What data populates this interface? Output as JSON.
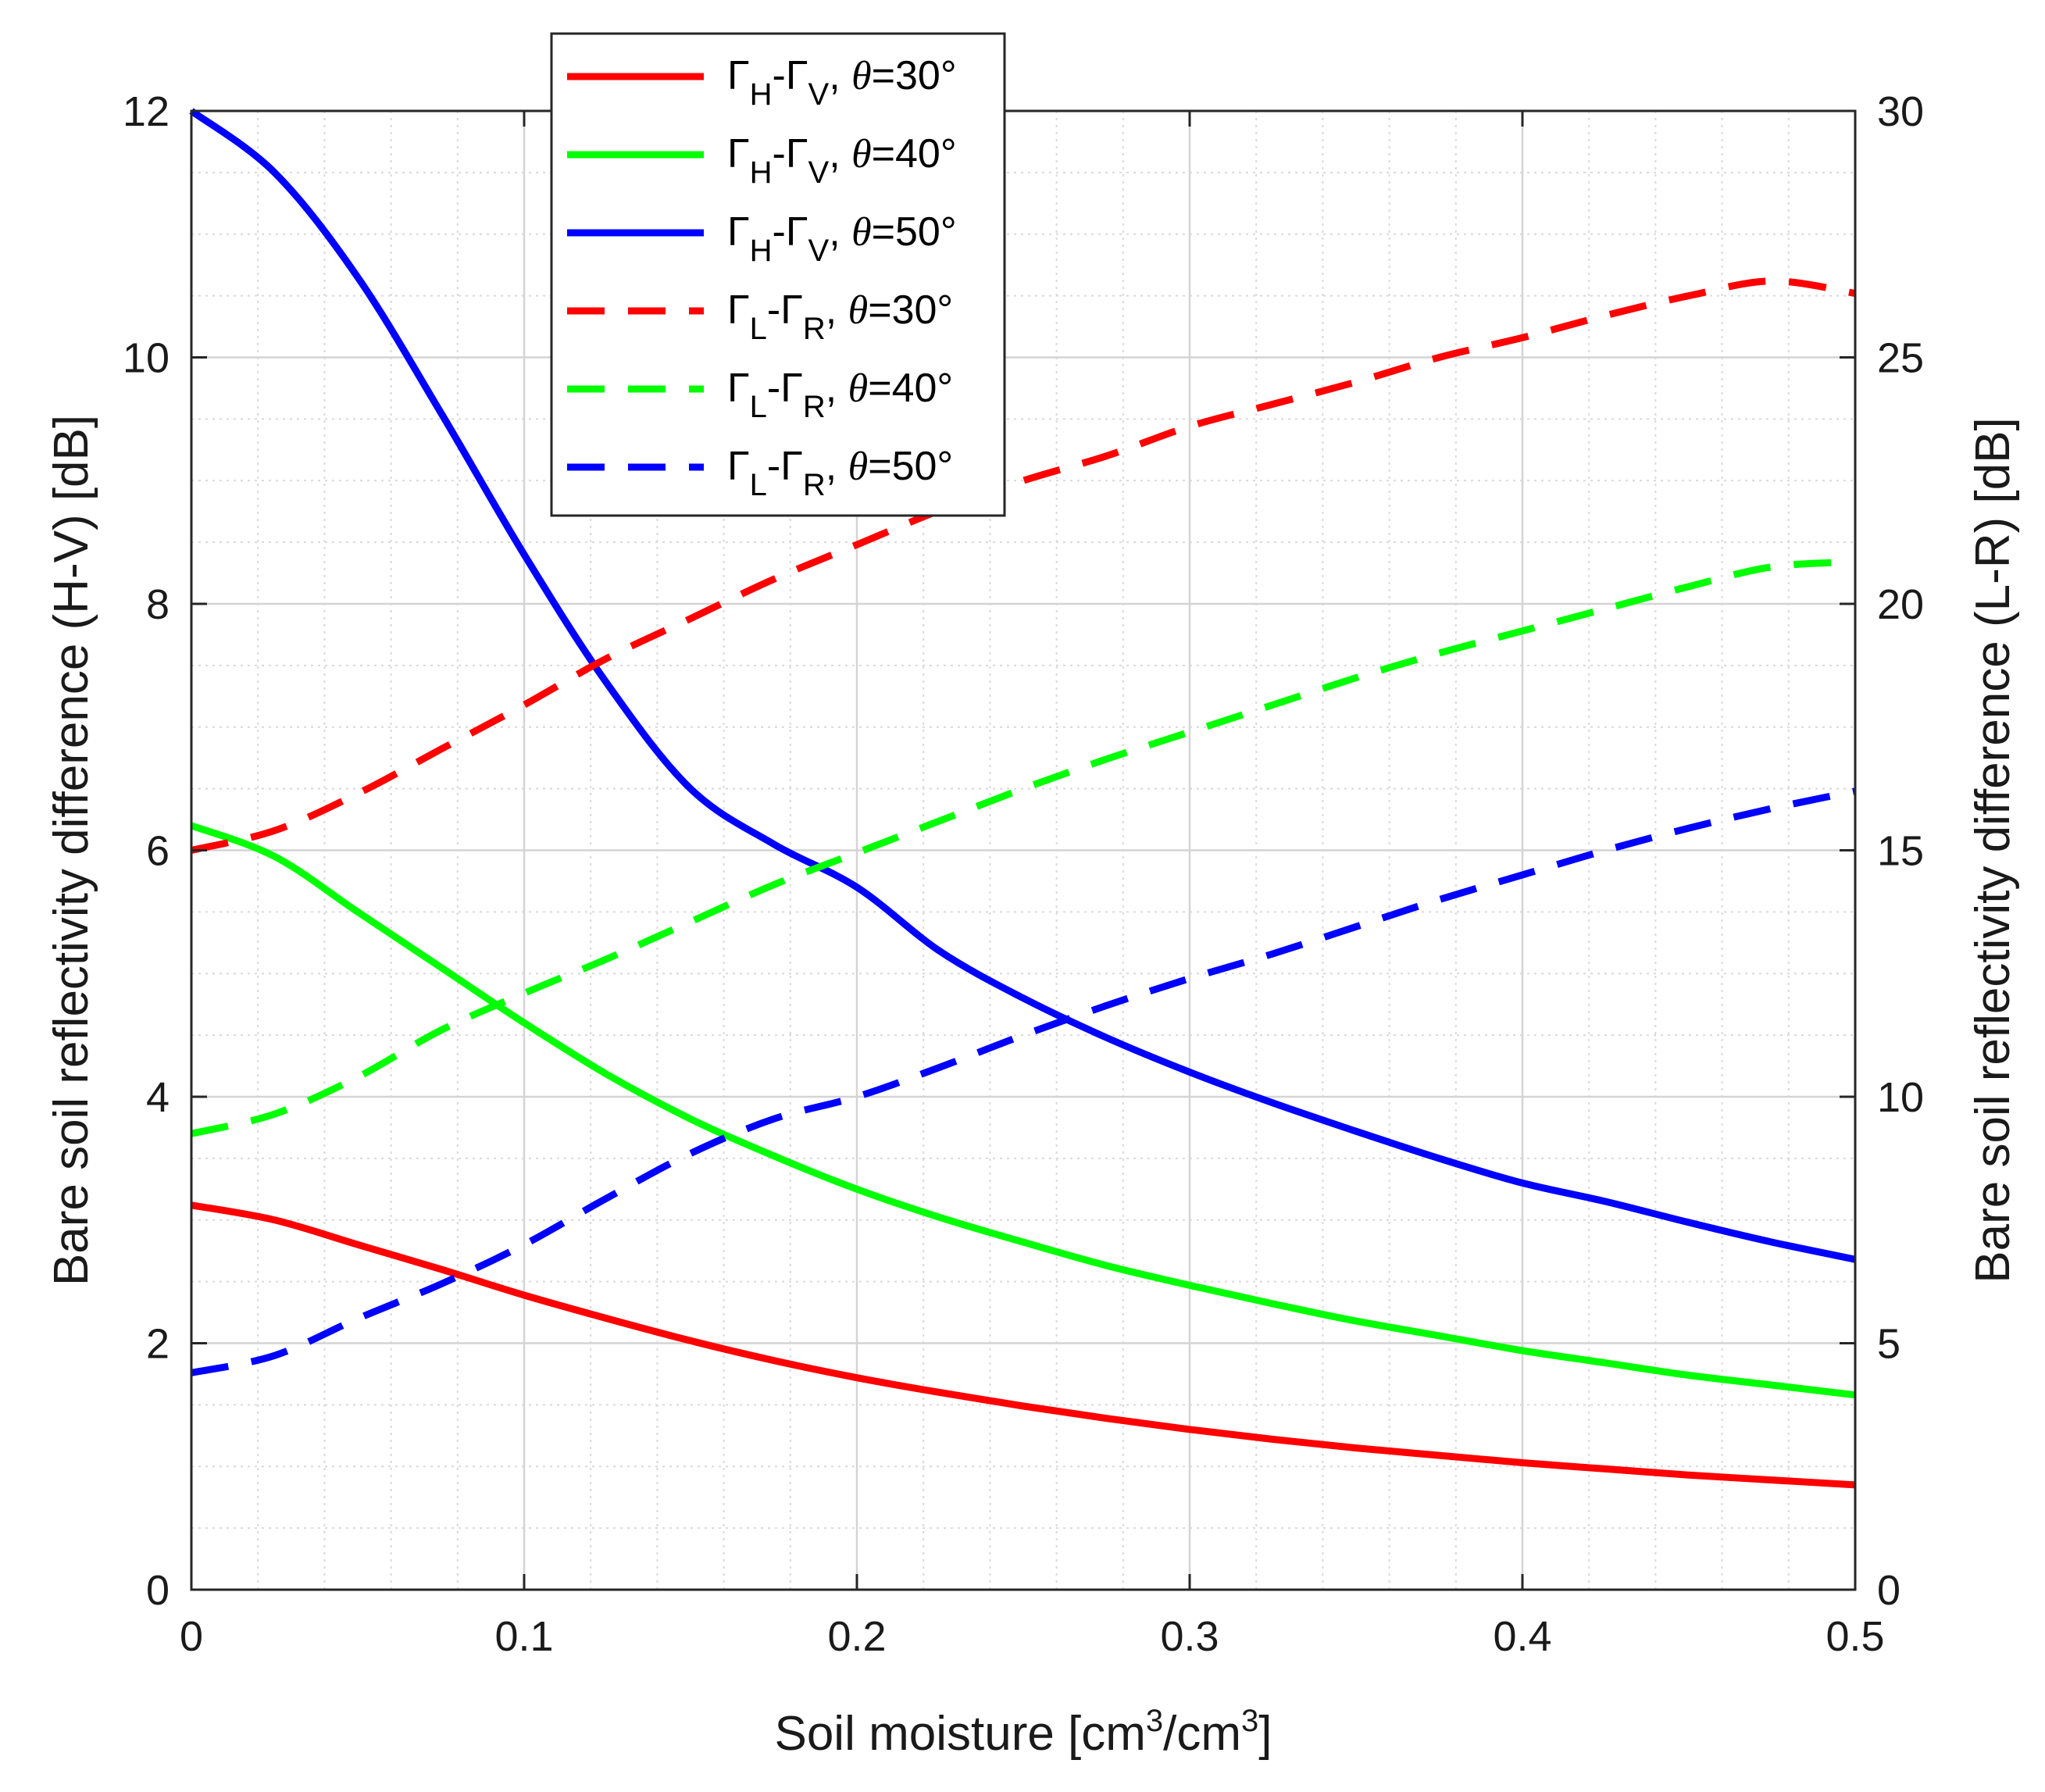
{
  "chart_data": {
    "type": "line",
    "title": "",
    "xlabel": {
      "main": "Soil moisture [cm",
      "sup1": "3",
      "mid": "/cm",
      "sup2": "3",
      "end": "]"
    },
    "ylabel_left": "Bare soil reflectivity difference (H-V) [dB]",
    "ylabel_right": "Bare soil reflectivity difference (L-R) [dB]",
    "xlim": [
      0,
      0.5
    ],
    "ylim_left": [
      0,
      12
    ],
    "ylim_right": [
      0,
      30
    ],
    "xticks": [
      0,
      0.1,
      0.2,
      0.3,
      0.4,
      0.5
    ],
    "xtick_labels": [
      "0",
      "0.1",
      "0.2",
      "0.3",
      "0.4",
      "0.5"
    ],
    "yticks_left": [
      0,
      2,
      4,
      6,
      8,
      10,
      12
    ],
    "ytick_labels_left": [
      "0",
      "2",
      "4",
      "6",
      "8",
      "10",
      "12"
    ],
    "yticks_right": [
      0,
      5,
      10,
      15,
      20,
      25,
      30
    ],
    "ytick_labels_right": [
      "0",
      "5",
      "10",
      "15",
      "20",
      "25",
      "30"
    ],
    "grid": true,
    "minor_grid": true,
    "legend_position": "top-center",
    "x": [
      0,
      0.025,
      0.05,
      0.075,
      0.1,
      0.125,
      0.15,
      0.175,
      0.2,
      0.225,
      0.25,
      0.275,
      0.3,
      0.325,
      0.35,
      0.375,
      0.4,
      0.425,
      0.45,
      0.475,
      0.5
    ],
    "series": [
      {
        "name": "ΓH-ΓV, θ=30°",
        "legend": {
          "g": "Γ",
          "s1": "H",
          "d": "-Γ",
          "s2": "V",
          "c": ", ",
          "th": "θ",
          "v": "=30°"
        },
        "axis": "left",
        "color": "#ff0000",
        "style": "solid",
        "values": [
          3.12,
          3.0,
          2.8,
          2.6,
          2.39,
          2.2,
          2.02,
          1.86,
          1.72,
          1.6,
          1.49,
          1.39,
          1.3,
          1.22,
          1.15,
          1.09,
          1.03,
          0.98,
          0.93,
          0.89,
          0.85
        ]
      },
      {
        "name": "ΓH-ΓV, θ=40°",
        "legend": {
          "g": "Γ",
          "s1": "H",
          "d": "-Γ",
          "s2": "V",
          "c": ", ",
          "th": "θ",
          "v": "=40°"
        },
        "axis": "left",
        "color": "#00ff00",
        "style": "solid",
        "values": [
          6.2,
          5.95,
          5.5,
          5.05,
          4.6,
          4.18,
          3.82,
          3.52,
          3.25,
          3.02,
          2.82,
          2.63,
          2.47,
          2.32,
          2.18,
          2.06,
          1.94,
          1.84,
          1.74,
          1.66,
          1.58
        ]
      },
      {
        "name": "ΓH-ΓV, θ=50°",
        "legend": {
          "g": "Γ",
          "s1": "H",
          "d": "-Γ",
          "s2": "V",
          "c": ", ",
          "th": "θ",
          "v": "=50°"
        },
        "axis": "left",
        "color": "#0000ff",
        "style": "solid",
        "values": [
          12.0,
          11.5,
          10.65,
          9.55,
          8.4,
          7.35,
          6.5,
          6.05,
          5.7,
          5.18,
          4.8,
          4.48,
          4.2,
          3.95,
          3.72,
          3.5,
          3.3,
          3.15,
          2.98,
          2.82,
          2.68
        ]
      },
      {
        "name": "ΓL-ΓR, θ=30°",
        "legend": {
          "g": "Γ",
          "s1": "L",
          "d": "-Γ",
          "s2": "R",
          "c": ", ",
          "th": "θ",
          "v": "=30°"
        },
        "axis": "right",
        "color": "#ff0000",
        "style": "dashed",
        "values": [
          15.0,
          15.4,
          16.15,
          17.05,
          17.95,
          18.9,
          19.7,
          20.5,
          21.2,
          21.9,
          22.5,
          23.0,
          23.6,
          24.05,
          24.5,
          25.0,
          25.4,
          25.85,
          26.25,
          26.55,
          26.3
        ]
      },
      {
        "name": "ΓL-ΓR, θ=40°",
        "legend": {
          "g": "Γ",
          "s1": "L",
          "d": "-Γ",
          "s2": "R",
          "c": ", ",
          "th": "θ",
          "v": "=40°"
        },
        "axis": "right",
        "color": "#00ff00",
        "style": "dashed",
        "values": [
          9.25,
          9.65,
          10.4,
          11.35,
          12.1,
          12.8,
          13.55,
          14.3,
          14.95,
          15.6,
          16.25,
          16.85,
          17.4,
          17.95,
          18.5,
          19.0,
          19.45,
          19.9,
          20.35,
          20.75,
          20.85
        ]
      },
      {
        "name": "ΓL-ΓR, θ=50°",
        "legend": {
          "g": "Γ",
          "s1": "L",
          "d": "-Γ",
          "s2": "R",
          "c": ", ",
          "th": "θ",
          "v": "=50°"
        },
        "axis": "right",
        "color": "#0000ff",
        "style": "dashed",
        "values": [
          4.4,
          4.75,
          5.5,
          6.2,
          7.0,
          7.95,
          8.85,
          9.55,
          10.0,
          10.6,
          11.25,
          11.85,
          12.4,
          12.9,
          13.45,
          14.0,
          14.5,
          15.0,
          15.45,
          15.85,
          16.2
        ]
      }
    ]
  }
}
